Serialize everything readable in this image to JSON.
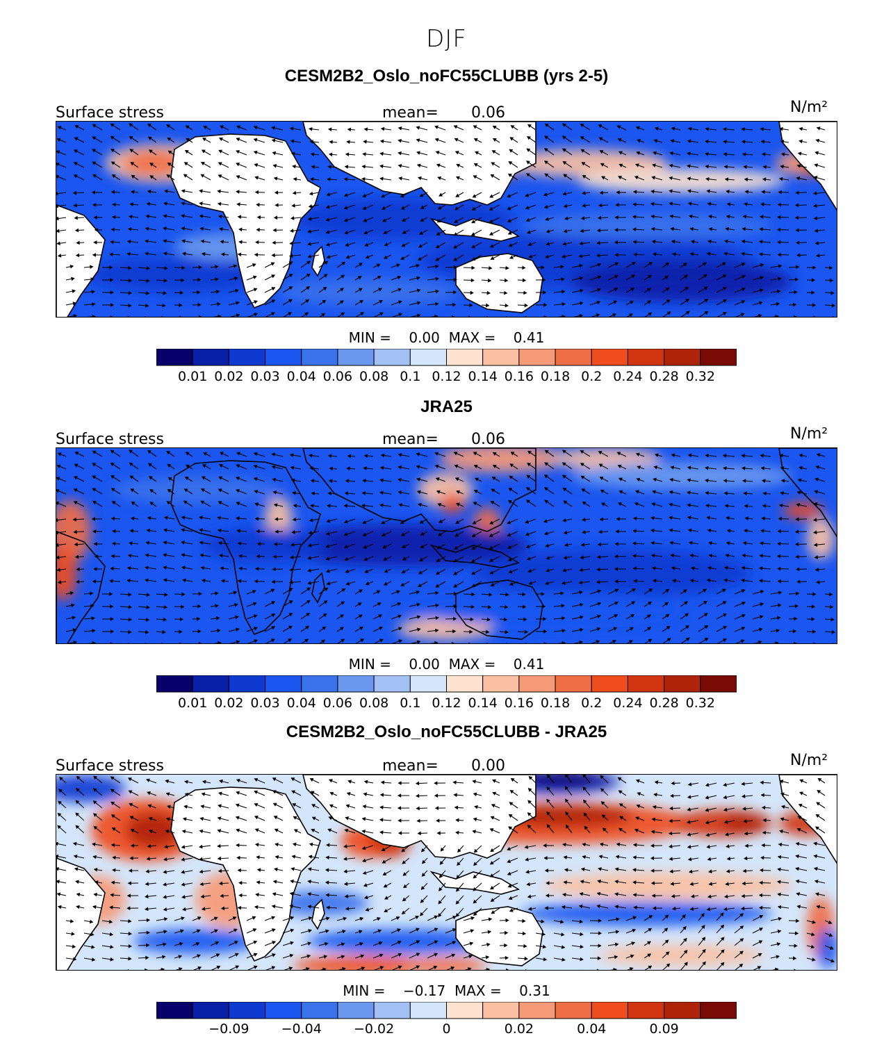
{
  "figure_title": "DJF",
  "chart_data": [
    {
      "type": "heatmap",
      "title": "CESM2B2_Oslo_noFC55CLUBB (yrs 2-5)",
      "variable": "Surface stress",
      "mean_label": "mean=",
      "mean_value": "0.06",
      "units": "N/m²",
      "min_label": "MIN =",
      "min_value": "0.00",
      "max_label": "MAX =",
      "max_value": "0.41",
      "colorbar_ticks": [
        "0.01",
        "0.02",
        "0.03",
        "0.04",
        "0.06",
        "0.08",
        "0.1",
        "0.12",
        "0.14",
        "0.16",
        "0.18",
        "0.2",
        "0.24",
        "0.28",
        "0.32"
      ],
      "colorbar_colors": [
        "#08006b",
        "#0a1fa8",
        "#0f3ad1",
        "#1a56ef",
        "#3a72ec",
        "#6a98ef",
        "#a4c1f5",
        "#d4e6fb",
        "#fde3cf",
        "#fbc0a2",
        "#f79a77",
        "#f06e45",
        "#ef4d1e",
        "#d1350f",
        "#b0230b",
        "#7a0a05"
      ],
      "wind_field": "model"
    },
    {
      "type": "heatmap",
      "title": "JRA25",
      "variable": "Surface stress",
      "mean_label": "mean=",
      "mean_value": "0.06",
      "units": "N/m²",
      "min_label": "MIN =",
      "min_value": "0.00",
      "max_label": "MAX =",
      "max_value": "0.41",
      "colorbar_ticks": [
        "0.01",
        "0.02",
        "0.03",
        "0.04",
        "0.06",
        "0.08",
        "0.1",
        "0.12",
        "0.14",
        "0.16",
        "0.18",
        "0.2",
        "0.24",
        "0.28",
        "0.32"
      ],
      "colorbar_colors": [
        "#08006b",
        "#0a1fa8",
        "#0f3ad1",
        "#1a56ef",
        "#3a72ec",
        "#6a98ef",
        "#a4c1f5",
        "#d4e6fb",
        "#fde3cf",
        "#fbc0a2",
        "#f79a77",
        "#f06e45",
        "#ef4d1e",
        "#d1350f",
        "#b0230b",
        "#7a0a05"
      ],
      "wind_field": "reanalysis"
    },
    {
      "type": "heatmap",
      "title": "CESM2B2_Oslo_noFC55CLUBB - JRA25",
      "variable": "Surface stress",
      "mean_label": "mean=",
      "mean_value": "0.00",
      "units": "N/m²",
      "min_label": "MIN =",
      "min_value": "−0.17",
      "max_label": "MAX =",
      "max_value": "0.31",
      "colorbar_ticks": [
        "",
        "−0.09",
        "",
        "−0.04",
        "",
        "−0.02",
        "",
        "0",
        "",
        "0.02",
        "",
        "0.04",
        "",
        "0.09",
        ""
      ],
      "colorbar_colors": [
        "#08006b",
        "#0a1fa8",
        "#0f3ad1",
        "#1a56ef",
        "#3a72ec",
        "#6a98ef",
        "#a4c1f5",
        "#d4e6fb",
        "#fde3cf",
        "#fbc0a2",
        "#f79a77",
        "#f06e45",
        "#ef4d1e",
        "#d1350f",
        "#b0230b",
        "#7a0a05"
      ],
      "wind_field": "difference"
    }
  ]
}
